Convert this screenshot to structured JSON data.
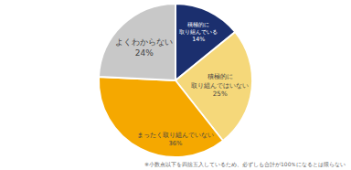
{
  "chart_data": {
    "type": "pie",
    "categories": [
      "積極的に\n取り組んでいる",
      "積極的に\n取り組んではいない",
      "まったく取り組んでいない",
      "よくわからない"
    ],
    "values": [
      14,
      25,
      36,
      24
    ],
    "value_labels": [
      "14%",
      "25%",
      "36%",
      "24%"
    ],
    "colors": [
      "#1b2f6e",
      "#f5d87a",
      "#f5a800",
      "#c8c8c8"
    ],
    "data_labels": true,
    "annotations": [
      "※小数点以下を四捨五入しているため、必ずしも合計が100％になるとは限らない"
    ]
  }
}
